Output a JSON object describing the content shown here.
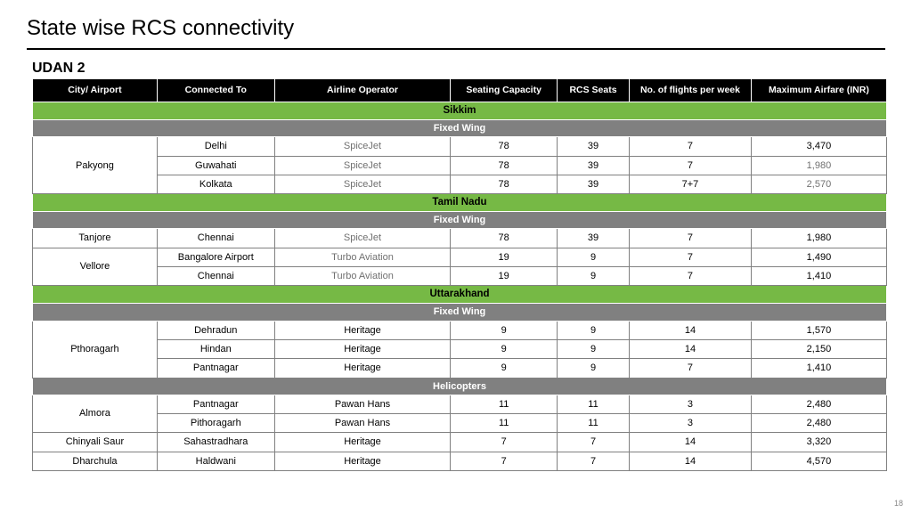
{
  "title": "State wise RCS connectivity",
  "subtitle": "UDAN 2",
  "page_number": "18",
  "columns": {
    "city": "City/ Airport",
    "connected": "Connected To",
    "operator": "Airline Operator",
    "seating": "Seating Capacity",
    "rcs": "RCS Seats",
    "flights": "No. of flights per week",
    "fare": "Maximum Airfare (INR)"
  },
  "states": {
    "sikkim": "Sikkim",
    "tamilnadu": "Tamil Nadu",
    "uttarakhand": "Uttarakhand"
  },
  "types": {
    "fixed": "Fixed Wing",
    "heli": "Helicopters"
  },
  "r": {
    "pakyong": "Pakyong",
    "r1c": "Delhi",
    "r1o": "SpiceJet",
    "r1s": "78",
    "r1rc": "39",
    "r1f": "7",
    "r1fa": "3,470",
    "r2c": "Guwahati",
    "r2o": "SpiceJet",
    "r2s": "78",
    "r2rc": "39",
    "r2f": "7",
    "r2fa": "1,980",
    "r3c": "Kolkata",
    "r3o": "SpiceJet",
    "r3s": "78",
    "r3rc": "39",
    "r3f": "7+7",
    "r3fa": "2,570",
    "tanjore": "Tanjore",
    "r4c": "Chennai",
    "r4o": "SpiceJet",
    "r4s": "78",
    "r4rc": "39",
    "r4f": "7",
    "r4fa": "1,980",
    "vellore": "Vellore",
    "r5c": "Bangalore Airport",
    "r5o": "Turbo Aviation",
    "r5s": "19",
    "r5rc": "9",
    "r5f": "7",
    "r5fa": "1,490",
    "r6c": "Chennai",
    "r6o": "Turbo Aviation",
    "r6s": "19",
    "r6rc": "9",
    "r6f": "7",
    "r6fa": "1,410",
    "pthoragarh": "Pthoragarh",
    "r7c": "Dehradun",
    "r7o": "Heritage",
    "r7s": "9",
    "r7rc": "9",
    "r7f": "14",
    "r7fa": "1,570",
    "r8c": "Hindan",
    "r8o": "Heritage",
    "r8s": "9",
    "r8rc": "9",
    "r8f": "14",
    "r8fa": "2,150",
    "r9c": "Pantnagar",
    "r9o": "Heritage",
    "r9s": "9",
    "r9rc": "9",
    "r9f": "7",
    "r9fa": "1,410",
    "almora": "Almora",
    "r10c": "Pantnagar",
    "r10o": "Pawan Hans",
    "r10s": "11",
    "r10rc": "11",
    "r10f": "3",
    "r10fa": "2,480",
    "r11c": "Pithoragarh",
    "r11o": "Pawan Hans",
    "r11s": "11",
    "r11rc": "11",
    "r11f": "3",
    "r11fa": "2,480",
    "chinyali": "Chinyali Saur",
    "r12c": "Sahastradhara",
    "r12o": "Heritage",
    "r12s": "7",
    "r12rc": "7",
    "r12f": "14",
    "r12fa": "3,320",
    "dharchula": "Dharchula",
    "r13c": "Haldwani",
    "r13o": "Heritage",
    "r13s": "7",
    "r13rc": "7",
    "r13f": "14",
    "r13fa": "4,570"
  }
}
